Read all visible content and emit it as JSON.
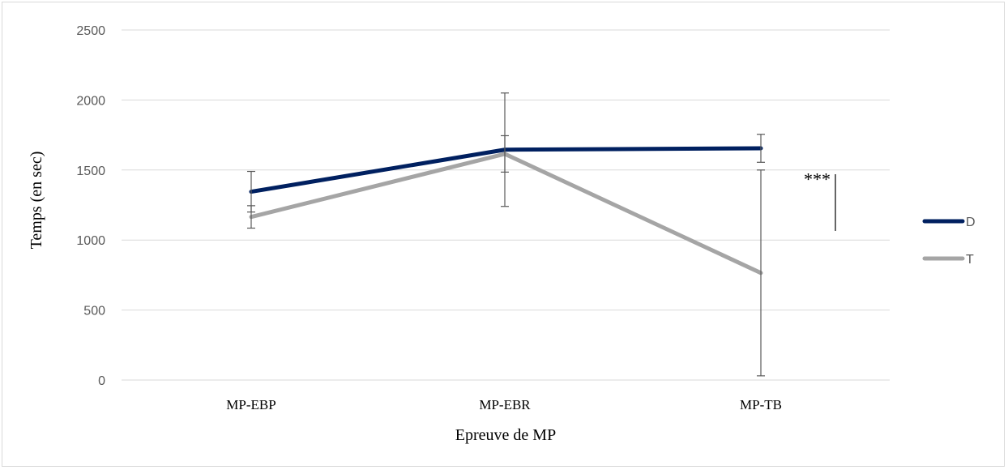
{
  "chart_data": {
    "type": "line",
    "title": "",
    "xlabel": "Epreuve de MP",
    "ylabel": "Temps (en sec)",
    "categories": [
      "MP-EBP",
      "MP-EBR",
      "MP-TB"
    ],
    "ylim": [
      0,
      2500
    ],
    "yticks": [
      0,
      500,
      1000,
      1500,
      2000,
      2500
    ],
    "grid": true,
    "legend_position": "right",
    "series": [
      {
        "name": "D",
        "color": "#002060",
        "values": [
          1345,
          1645,
          1655
        ],
        "error": [
          145,
          405,
          100
        ]
      },
      {
        "name": "T",
        "color": "#A5A5A5",
        "values": [
          1165,
          1615,
          765
        ],
        "error": [
          80,
          130,
          735
        ]
      }
    ],
    "annotations": [
      {
        "text": "***",
        "category": "MP-TB",
        "y": 1450,
        "bracket_range": [
          1065,
          1470
        ]
      }
    ]
  }
}
